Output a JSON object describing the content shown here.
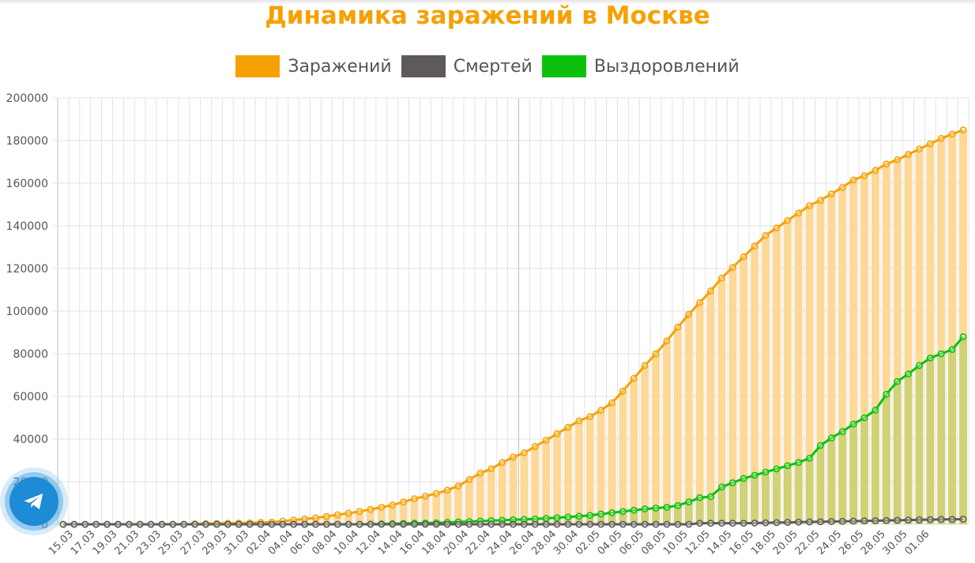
{
  "title": "Динамика заражений в Москве",
  "legend": [
    {
      "label": "Заражений",
      "color": "#f5a104"
    },
    {
      "label": "Смертей",
      "color": "#5f5a5a"
    },
    {
      "label": "Выздоровлений",
      "color": "#0cc10c"
    }
  ],
  "telegram_button": {
    "icon": "telegram-icon"
  },
  "chart_data": {
    "type": "line",
    "title": "Динамика заражений в Москве",
    "xlabel": "",
    "ylabel": "",
    "ylim": [
      0,
      200000
    ],
    "yticks": [
      0,
      20000,
      40000,
      60000,
      80000,
      100000,
      120000,
      140000,
      160000,
      180000,
      200000
    ],
    "grid": true,
    "legend_position": "top",
    "x_tick_labels": [
      "15.03",
      "17.03",
      "19.03",
      "21.03",
      "23.03",
      "25.03",
      "27.03",
      "29.03",
      "31.03",
      "02.04",
      "04.04",
      "06.04",
      "08.04",
      "10.04",
      "12.04",
      "14.04",
      "16.04",
      "18.04",
      "20.04",
      "22.04",
      "24.04",
      "26.04",
      "28.04",
      "30.04",
      "02.05",
      "04.05",
      "06.05",
      "08.05",
      "10.05",
      "12.05",
      "14.05",
      "16.05",
      "18.05",
      "20.05",
      "22.05",
      "24.05",
      "26.05",
      "28.05",
      "30.05",
      "01.06"
    ],
    "series": [
      {
        "name": "Заражений",
        "color": "#f5a104",
        "bar_fill": "#fdd896",
        "values": [
          0,
          0,
          0,
          0,
          0,
          0,
          0,
          0,
          0,
          0,
          0,
          0,
          200,
          300,
          400,
          500,
          600,
          700,
          900,
          1000,
          1500,
          2000,
          2500,
          3000,
          3700,
          4500,
          5200,
          6000,
          7000,
          8000,
          9000,
          10500,
          12000,
          13200,
          14500,
          16000,
          18000,
          21000,
          24000,
          26000,
          29000,
          31500,
          33500,
          36500,
          39500,
          42500,
          45500,
          48500,
          50500,
          53500,
          57000,
          62500,
          68500,
          74500,
          80000,
          86000,
          92500,
          98500,
          104000,
          109500,
          115500,
          120500,
          125500,
          130500,
          135500,
          139000,
          142500,
          146000,
          149500,
          152000,
          155000,
          158000,
          161500,
          163500,
          166000,
          169000,
          171000,
          173500,
          176000,
          178500,
          181000,
          183000,
          185000
        ]
      },
      {
        "name": "Смертей",
        "color": "#5f5a5a",
        "bar_fill": null,
        "values": [
          0,
          0,
          0,
          0,
          0,
          0,
          0,
          0,
          0,
          0,
          0,
          0,
          0,
          0,
          0,
          0,
          0,
          0,
          0,
          0,
          0,
          0,
          0,
          0,
          0,
          0,
          0,
          0,
          0,
          0,
          0,
          0,
          0,
          0,
          0,
          0,
          0,
          0,
          0,
          0,
          0,
          0,
          0,
          0,
          0,
          0,
          0,
          0,
          0,
          0,
          0,
          0,
          0,
          0,
          0,
          0,
          0,
          0,
          500,
          500,
          500,
          500,
          500,
          600,
          700,
          800,
          900,
          1000,
          1100,
          1200,
          1300,
          1400,
          1500,
          1600,
          1700,
          1800,
          1900,
          2000,
          2100,
          2200,
          2300,
          2300,
          2400
        ]
      },
      {
        "name": "Выздоровлений",
        "color": "#0cc10c",
        "bar_fill": "#d0d275",
        "values": [
          0,
          0,
          0,
          0,
          0,
          0,
          0,
          0,
          0,
          0,
          0,
          0,
          0,
          0,
          0,
          0,
          0,
          0,
          0,
          0,
          0,
          0,
          0,
          0,
          0,
          0,
          0,
          0,
          100,
          200,
          300,
          400,
          500,
          600,
          700,
          900,
          1100,
          1300,
          1500,
          1700,
          1900,
          2100,
          2300,
          2500,
          2800,
          3100,
          3400,
          3800,
          4200,
          4800,
          5400,
          6000,
          6600,
          7200,
          7600,
          8000,
          8800,
          10500,
          12500,
          13000,
          17500,
          19500,
          21500,
          23000,
          24500,
          26000,
          27500,
          29000,
          31000,
          37000,
          40500,
          43500,
          47000,
          50000,
          53500,
          61000,
          67000,
          70500,
          74500,
          78000,
          80000,
          82000,
          88000
        ]
      }
    ]
  }
}
